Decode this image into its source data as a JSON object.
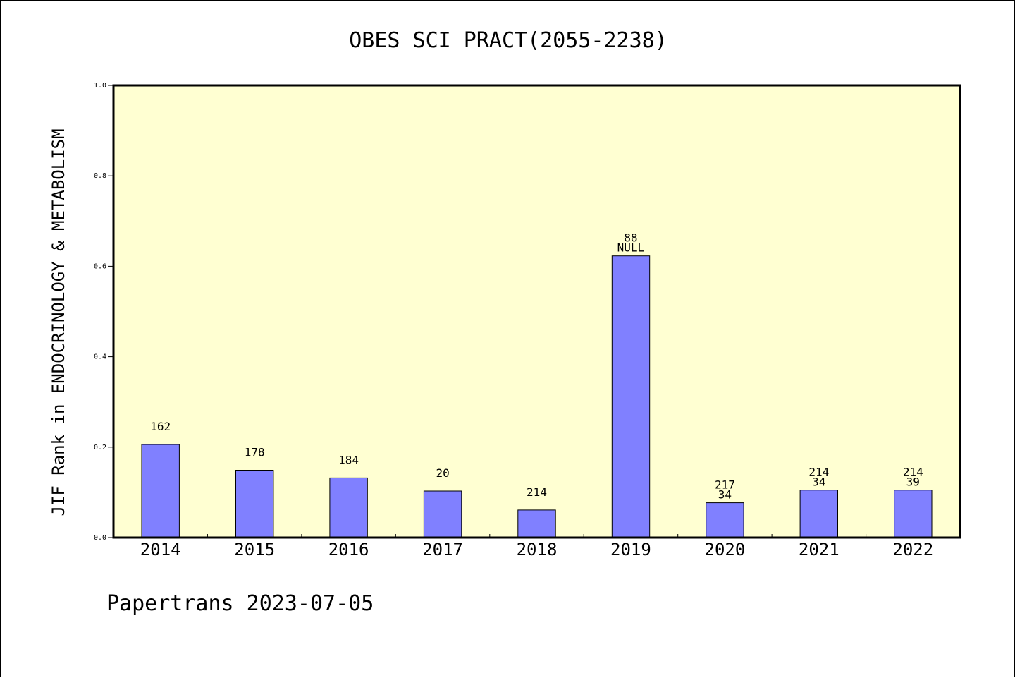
{
  "chart_data": {
    "type": "bar",
    "title": "OBES SCI PRACT(2055-2238)",
    "xlabel": "",
    "ylabel": "JIF Rank in ENDOCRINOLOGY & METABOLISM",
    "ylim": [
      0.0,
      1.0
    ],
    "yticks": [
      "0.0",
      "0.2",
      "0.4",
      "0.6",
      "0.8",
      "1.0"
    ],
    "categories": [
      "2014",
      "2015",
      "2016",
      "2017",
      "2018",
      "2019",
      "2020",
      "2021",
      "2022"
    ],
    "values": [
      0.206,
      0.149,
      0.132,
      0.103,
      0.061,
      0.623,
      0.077,
      0.105,
      0.105
    ],
    "bar_labels": [
      [
        "162"
      ],
      [
        "178"
      ],
      [
        "184"
      ],
      [
        "20"
      ],
      [
        "214"
      ],
      [
        "88",
        "NULL"
      ],
      [
        "217",
        "34"
      ],
      [
        "214",
        "34"
      ],
      [
        "214",
        "39"
      ]
    ],
    "grid": false,
    "colors": {
      "bar_fill": "#8080ff",
      "plot_background": "#ffffd2"
    }
  },
  "footer": {
    "text": "Papertrans 2023-07-05"
  }
}
